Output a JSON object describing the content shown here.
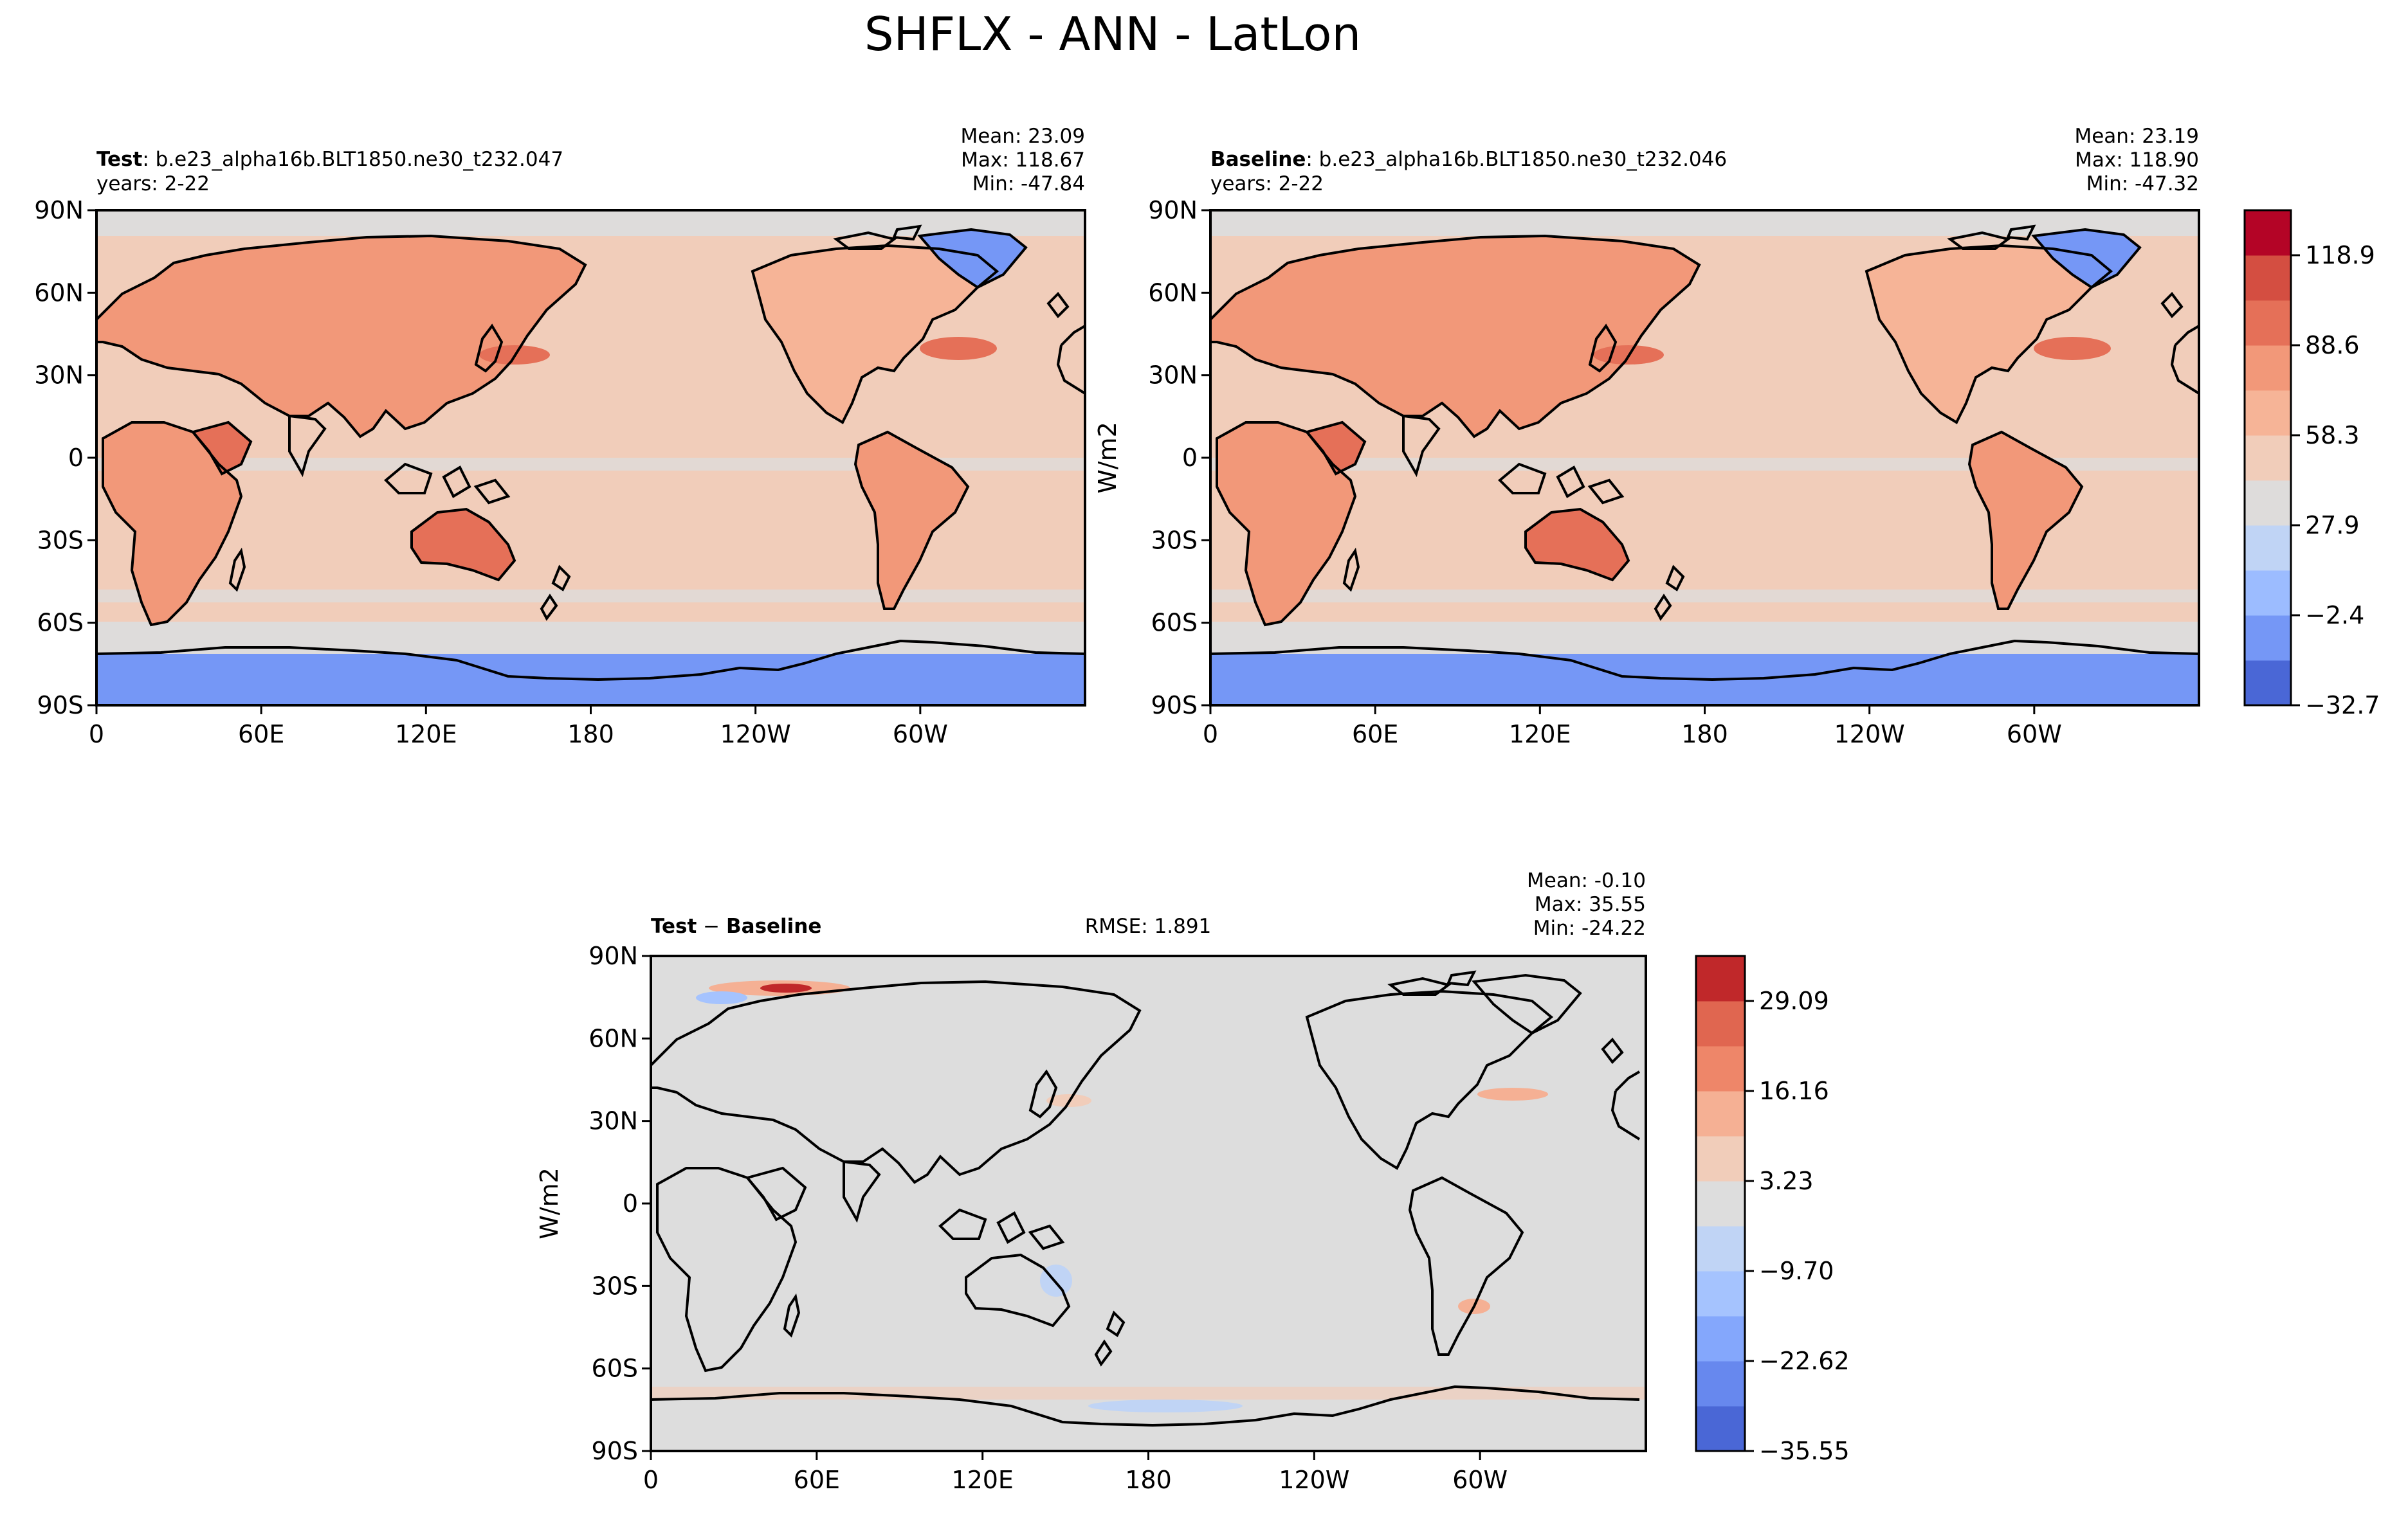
{
  "figure": {
    "title": "SHFLX - ANN - LatLon"
  },
  "panels": {
    "test": {
      "label_bold": "Test",
      "label_rest": ": b.e23_alpha16b.BLT1850.ne30_t232.047",
      "years": "years: 2-22",
      "mean": "Mean: 23.09",
      "max": "Max: 118.67",
      "min": "Min: -47.84"
    },
    "baseline": {
      "label_bold": "Baseline",
      "label_rest": ": b.e23_alpha16b.BLT1850.ne30_t232.046",
      "years": "years: 2-22",
      "mean": "Mean: 23.19",
      "max": "Max: 118.90",
      "min": "Min: -47.32"
    },
    "diff": {
      "label_bold_1": "Test",
      "label_sep": " − ",
      "label_bold_2": "Baseline",
      "rmse": "RMSE: 1.891",
      "mean": "Mean: -0.10",
      "max": "Max: 35.55",
      "min": "Min: -24.22"
    }
  },
  "axes": {
    "lat_ticks": [
      "90N",
      "60N",
      "30N",
      "0",
      "30S",
      "60S",
      "90S"
    ],
    "lon_ticks": [
      "0",
      "60E",
      "120E",
      "180",
      "120W",
      "60W"
    ]
  },
  "colorbars": {
    "main": {
      "unit_label": "W/m2",
      "tick_labels": [
        "118.9",
        "88.6",
        "58.3",
        "27.9",
        "−2.4",
        "−32.7"
      ],
      "colors": [
        "#4a67d6",
        "#7597f6",
        "#9cbcff",
        "#c0d4f5",
        "#dedcdb",
        "#f1cdba",
        "#f6b497",
        "#f29879",
        "#e57058",
        "#d44e41",
        "#b40426"
      ]
    },
    "diff": {
      "unit_label": "W/m2",
      "tick_labels": [
        "29.09",
        "16.16",
        "3.23",
        "−9.70",
        "−22.62",
        "−35.55"
      ],
      "colors": [
        "#4a67d6",
        "#6788ee",
        "#84a7fc",
        "#a5c3fe",
        "#c0d4f5",
        "#dddddd",
        "#f1cdba",
        "#f5b094",
        "#ee8669",
        "#e06650",
        "#c0282a"
      ]
    }
  }
}
